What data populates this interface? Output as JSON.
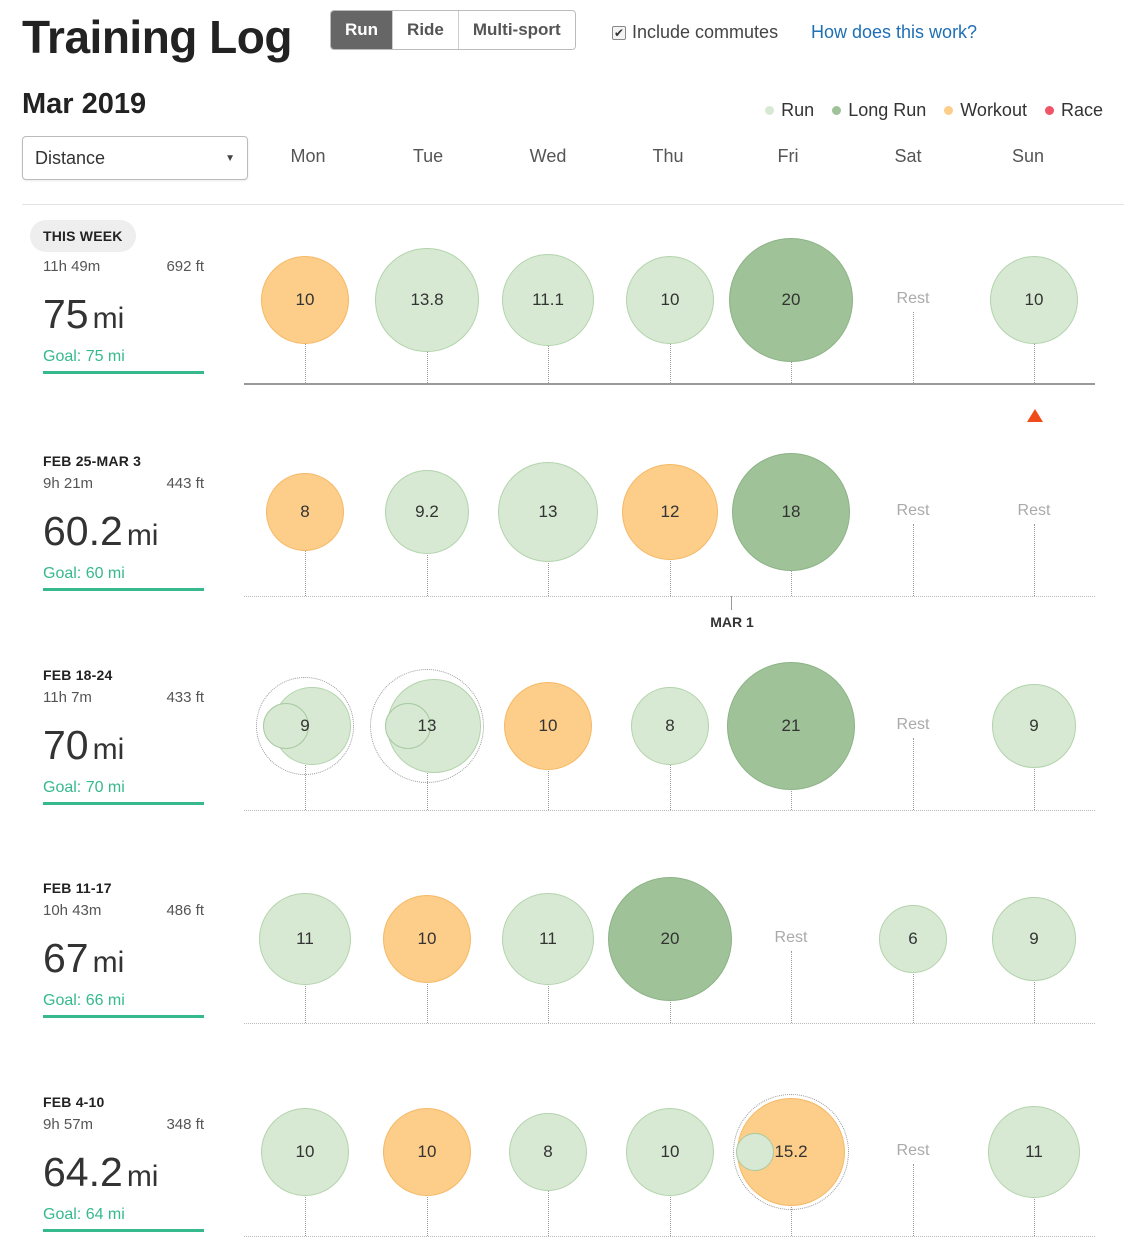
{
  "header": {
    "title": "Training Log",
    "sports": [
      "Run",
      "Ride",
      "Multi-sport"
    ],
    "active_sport": "Run",
    "include_commutes": "Include commutes",
    "help_link": "How does this work?"
  },
  "month_label": "Mar 2019",
  "legend": [
    {
      "label": "Run",
      "color": "#d7e9d3"
    },
    {
      "label": "Long Run",
      "color": "#9fc299"
    },
    {
      "label": "Workout",
      "color": "#fdcd8a"
    },
    {
      "label": "Race",
      "color": "#f05466"
    }
  ],
  "metric_select": {
    "value": "Distance"
  },
  "days": [
    "Mon",
    "Tue",
    "Wed",
    "Thu",
    "Fri",
    "Sat",
    "Sun"
  ],
  "rest_label": "Rest",
  "month_marker": "MAR 1",
  "weeks": [
    {
      "label": "THIS WEEK",
      "time": "11h 49m",
      "elev": "692 ft",
      "distance": "75",
      "unit": "mi",
      "goal": "Goal: 75 mi",
      "activities": [
        {
          "day": 0,
          "type": "workout",
          "value": 10
        },
        {
          "day": 1,
          "type": "run",
          "value": 13.8
        },
        {
          "day": 2,
          "type": "run",
          "value": 11.1
        },
        {
          "day": 3,
          "type": "run",
          "value": 10
        },
        {
          "day": 4,
          "type": "long",
          "value": 20
        },
        {
          "day": 5,
          "type": "rest",
          "value": 0
        },
        {
          "day": 6,
          "type": "run",
          "value": 10
        }
      ]
    },
    {
      "label": "FEB 25-MAR 3",
      "time": "9h 21m",
      "elev": "443 ft",
      "distance": "60.2",
      "unit": "mi",
      "goal": "Goal: 60 mi",
      "activities": [
        {
          "day": 0,
          "type": "workout",
          "value": 8
        },
        {
          "day": 1,
          "type": "run",
          "value": 9.2
        },
        {
          "day": 2,
          "type": "run",
          "value": 13
        },
        {
          "day": 3,
          "type": "workout",
          "value": 12
        },
        {
          "day": 4,
          "type": "long",
          "value": 18
        },
        {
          "day": 5,
          "type": "rest",
          "value": 0
        },
        {
          "day": 6,
          "type": "rest",
          "value": 0
        }
      ]
    },
    {
      "label": "FEB 18-24",
      "time": "11h 7m",
      "elev": "433 ft",
      "distance": "70",
      "unit": "mi",
      "goal": "Goal: 70 mi",
      "activities": [
        {
          "day": 0,
          "type": "run",
          "value": 9,
          "multi": true
        },
        {
          "day": 1,
          "type": "run",
          "value": 13,
          "multi": true
        },
        {
          "day": 2,
          "type": "workout",
          "value": 10
        },
        {
          "day": 3,
          "type": "run",
          "value": 8
        },
        {
          "day": 4,
          "type": "long",
          "value": 21
        },
        {
          "day": 5,
          "type": "rest",
          "value": 0
        },
        {
          "day": 6,
          "type": "run",
          "value": 9
        }
      ]
    },
    {
      "label": "FEB 11-17",
      "time": "10h 43m",
      "elev": "486 ft",
      "distance": "67",
      "unit": "mi",
      "goal": "Goal: 66 mi",
      "activities": [
        {
          "day": 0,
          "type": "run",
          "value": 11
        },
        {
          "day": 1,
          "type": "workout",
          "value": 10
        },
        {
          "day": 2,
          "type": "run",
          "value": 11
        },
        {
          "day": 3,
          "type": "long",
          "value": 20
        },
        {
          "day": 4,
          "type": "rest",
          "value": 0
        },
        {
          "day": 5,
          "type": "run",
          "value": 6
        },
        {
          "day": 6,
          "type": "run",
          "value": 9
        }
      ]
    },
    {
      "label": "FEB 4-10",
      "time": "9h 57m",
      "elev": "348 ft",
      "distance": "64.2",
      "unit": "mi",
      "goal": "Goal: 64 mi",
      "activities": [
        {
          "day": 0,
          "type": "run",
          "value": 10
        },
        {
          "day": 1,
          "type": "workout",
          "value": 10
        },
        {
          "day": 2,
          "type": "run",
          "value": 8
        },
        {
          "day": 3,
          "type": "run",
          "value": 10
        },
        {
          "day": 4,
          "type": "workout",
          "value": 15.2,
          "multi": true
        },
        {
          "day": 5,
          "type": "rest",
          "value": 0
        },
        {
          "day": 6,
          "type": "run",
          "value": 11
        }
      ]
    }
  ]
}
